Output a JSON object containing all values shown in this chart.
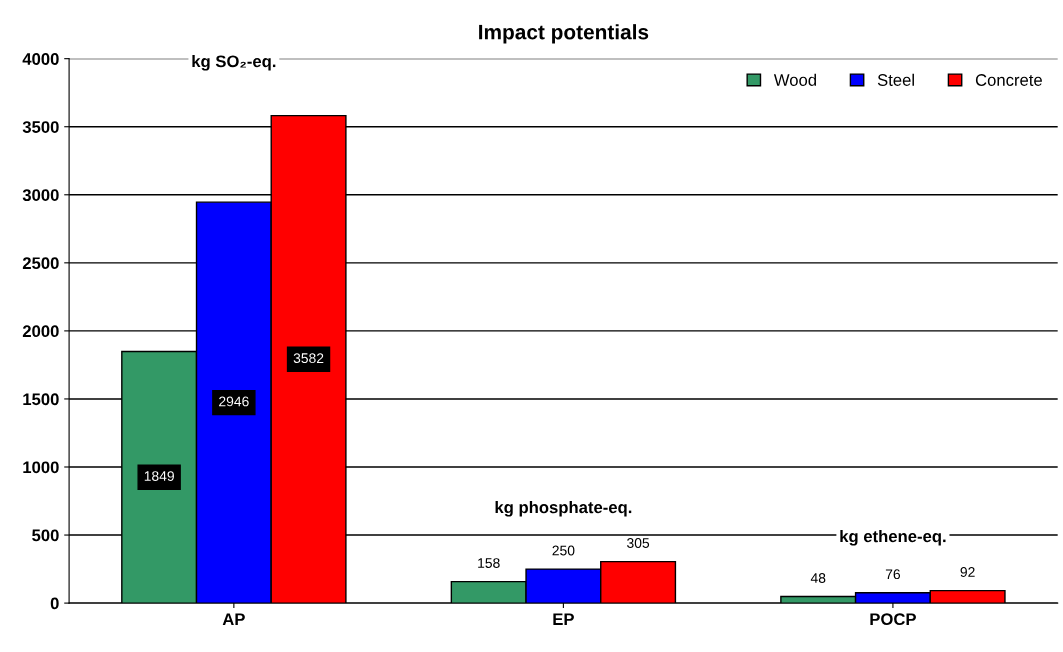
{
  "chart_data": {
    "type": "bar",
    "title": "Impact potentials",
    "categories": [
      "AP",
      "EP",
      "POCP"
    ],
    "series": [
      {
        "name": "Wood",
        "color": "#339966",
        "values": [
          1849,
          158,
          48
        ]
      },
      {
        "name": "Steel",
        "color": "#0000ff",
        "values": [
          2946,
          250,
          76
        ]
      },
      {
        "name": "Concrete",
        "color": "#ff0000",
        "values": [
          3582,
          305,
          92
        ]
      }
    ],
    "ylim": [
      0,
      4000
    ],
    "yticks": [
      0,
      500,
      1000,
      1500,
      2000,
      2500,
      3000,
      3500,
      4000
    ],
    "grid": "y",
    "legend": "top right",
    "data_labels": true,
    "annotations": [
      "kg SO₂-eq.",
      "kg phosphate-eq.",
      "kg ethene-eq."
    ]
  }
}
